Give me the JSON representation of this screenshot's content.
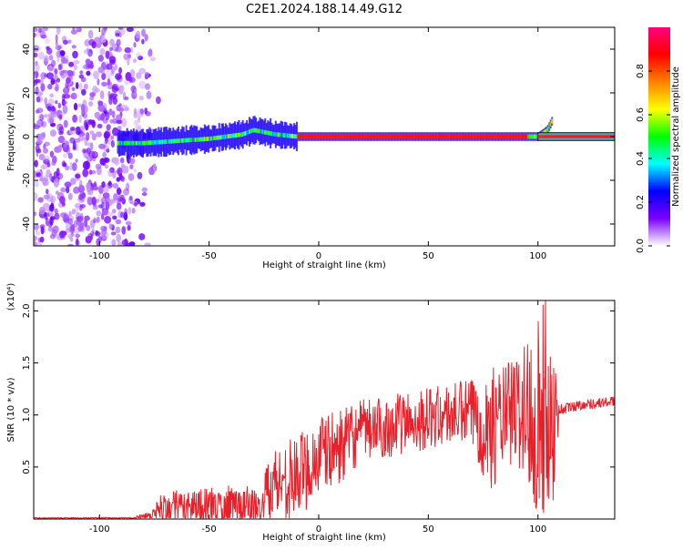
{
  "title": "C2E1.2024.188.14.49.G12",
  "chart_data": [
    {
      "type": "heatmap",
      "xlabel": "Height of straight line (km)",
      "ylabel": "Frequency (Hz)",
      "xlim": [
        -130,
        135
      ],
      "ylim": [
        -50,
        50
      ],
      "x_ticks": [
        -100,
        -50,
        0,
        50,
        100
      ],
      "y_ticks": [
        -40,
        -20,
        0,
        20,
        40
      ],
      "noise_region_x": [
        -130,
        -78
      ],
      "noise_amplitude": 0.05,
      "signal_start_x": -92,
      "signal_end_x": 106,
      "line_start_x": 100,
      "line_end_x": 135,
      "centroid": [
        {
          "x": -92,
          "y": -3
        },
        {
          "x": -80,
          "y": -3
        },
        {
          "x": -65,
          "y": -2
        },
        {
          "x": -50,
          "y": -1
        },
        {
          "x": -35,
          "y": 1
        },
        {
          "x": -30,
          "y": 3
        },
        {
          "x": -20,
          "y": 1
        },
        {
          "x": -10,
          "y": 0
        },
        {
          "x": 0,
          "y": 0
        },
        {
          "x": 50,
          "y": 0
        },
        {
          "x": 100,
          "y": 0
        },
        {
          "x": 104,
          "y": 3
        },
        {
          "x": 106,
          "y": 7
        },
        {
          "x": 135,
          "y": 0
        }
      ],
      "colorbar": {
        "label": "Normalized spectral amplitude",
        "range": [
          0,
          1
        ],
        "ticks": [
          0.0,
          0.2,
          0.4,
          0.6,
          0.8
        ],
        "tick_labels": [
          "0.0",
          "0.2",
          "0.4",
          "0.6",
          "0.8"
        ],
        "colors": [
          "#ffffff",
          "#7a00ff",
          "#0000ff",
          "#00ffff",
          "#00ff00",
          "#ffff00",
          "#ff8000",
          "#ff0000",
          "#ff0080"
        ]
      },
      "grid": false
    },
    {
      "type": "line",
      "xlabel": "Height of straight line (km)",
      "ylabel": "SNR (10 * v/v)",
      "y_multiplier": "(x10⁴)",
      "xlim": [
        -130,
        135
      ],
      "ylim": [
        0,
        2.1
      ],
      "x_ticks": [
        -100,
        -50,
        0,
        50,
        100
      ],
      "y_ticks": [
        0.5,
        1.0,
        1.5,
        2.0
      ],
      "y_tick_labels": [
        "0.5",
        "1.0",
        "1.5",
        "2.0"
      ],
      "line_color": "#e8202a",
      "grid": false,
      "series": [
        {
          "name": "",
          "envelope": [
            {
              "x": -130,
              "mean": 0.01,
              "amp": 0.005
            },
            {
              "x": -85,
              "mean": 0.01,
              "amp": 0.005
            },
            {
              "x": -78,
              "mean": 0.03,
              "amp": 0.04
            },
            {
              "x": -72,
              "mean": 0.1,
              "amp": 0.15
            },
            {
              "x": -60,
              "mean": 0.12,
              "amp": 0.18
            },
            {
              "x": -50,
              "mean": 0.12,
              "amp": 0.18
            },
            {
              "x": -40,
              "mean": 0.13,
              "amp": 0.2
            },
            {
              "x": -30,
              "mean": 0.12,
              "amp": 0.2
            },
            {
              "x": -26,
              "mean": 0.08,
              "amp": 0.1
            },
            {
              "x": -24,
              "mean": 0.3,
              "amp": 0.3
            },
            {
              "x": -20,
              "mean": 0.35,
              "amp": 0.35
            },
            {
              "x": -10,
              "mean": 0.4,
              "amp": 0.4
            },
            {
              "x": 0,
              "mean": 0.6,
              "amp": 0.4
            },
            {
              "x": 10,
              "mean": 0.7,
              "amp": 0.35
            },
            {
              "x": 20,
              "mean": 0.85,
              "amp": 0.3
            },
            {
              "x": 30,
              "mean": 0.88,
              "amp": 0.3
            },
            {
              "x": 40,
              "mean": 0.93,
              "amp": 0.3
            },
            {
              "x": 50,
              "mean": 0.97,
              "amp": 0.3
            },
            {
              "x": 60,
              "mean": 1.0,
              "amp": 0.3
            },
            {
              "x": 70,
              "mean": 1.02,
              "amp": 0.35
            },
            {
              "x": 78,
              "mean": 0.85,
              "amp": 0.6
            },
            {
              "x": 85,
              "mean": 1.0,
              "amp": 0.5
            },
            {
              "x": 92,
              "mean": 1.05,
              "amp": 0.6
            },
            {
              "x": 97,
              "mean": 1.0,
              "amp": 0.9
            },
            {
              "x": 103,
              "mean": 1.05,
              "amp": 1.1
            },
            {
              "x": 107,
              "mean": 0.95,
              "amp": 0.8
            },
            {
              "x": 110,
              "mean": 1.05,
              "amp": 0.06
            },
            {
              "x": 120,
              "mean": 1.1,
              "amp": 0.05
            },
            {
              "x": 135,
              "mean": 1.13,
              "amp": 0.05
            }
          ]
        }
      ]
    }
  ]
}
